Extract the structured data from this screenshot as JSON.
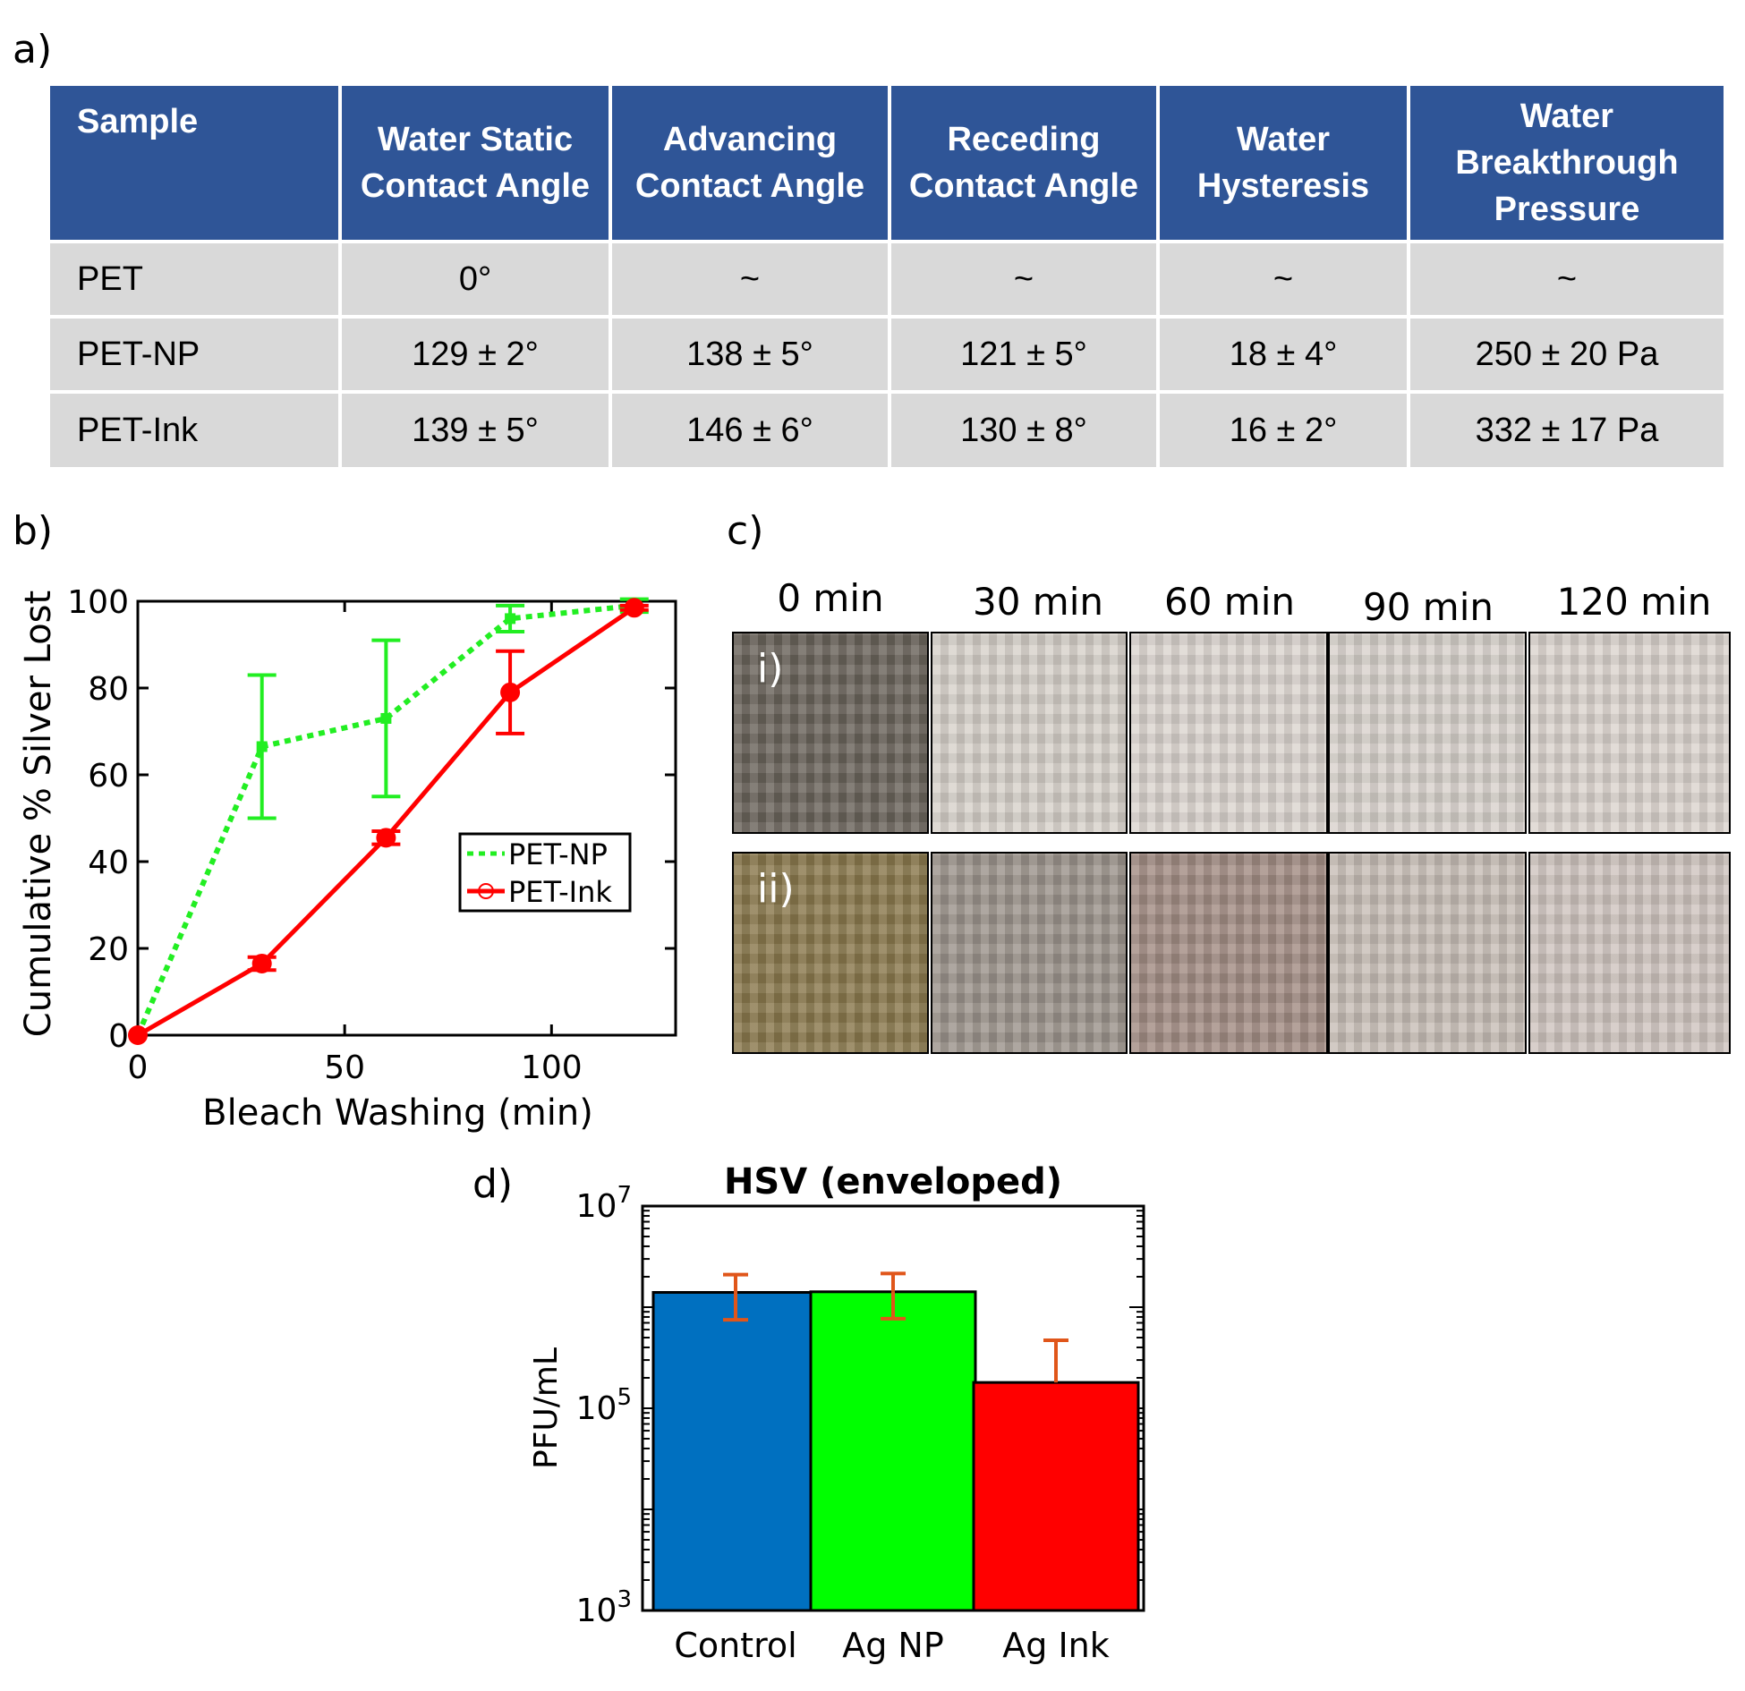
{
  "panel_labels": {
    "a": "a)",
    "b": "b)",
    "c": "c)",
    "d": "d)"
  },
  "table": {
    "headers": [
      "Sample",
      "Water Static Contact Angle",
      "Advancing Contact Angle",
      "Receding Contact Angle",
      "Water Hysteresis",
      "Water Breakthrough Pressure"
    ],
    "rows": [
      [
        "PET",
        "0°",
        "~",
        "~",
        "~",
        "~"
      ],
      [
        "PET-NP",
        "129 ± 2°",
        "138 ± 5°",
        "121 ± 5°",
        "18 ± 4°",
        "250 ± 20 Pa"
      ],
      [
        "PET-Ink",
        "139 ± 5°",
        "146 ± 6°",
        "130 ± 8°",
        "16 ± 2°",
        "332 ± 17 Pa"
      ]
    ]
  },
  "chart_data": [
    {
      "type": "line",
      "panel": "b",
      "xlabel": "Bleach Washing (min)",
      "ylabel": "Cumulative % Silver Lost",
      "xlim": [
        0,
        130
      ],
      "ylim": [
        0,
        100
      ],
      "xticks": [
        0,
        50,
        100
      ],
      "yticks": [
        0,
        20,
        40,
        60,
        80,
        100
      ],
      "legend_position": "center-right",
      "series": [
        {
          "name": "PET-NP",
          "color": "#22ee22",
          "style": "dotted",
          "marker": "square",
          "x": [
            0,
            30,
            60,
            90,
            120
          ],
          "y": [
            0,
            66.5,
            73,
            96,
            99
          ],
          "err": [
            0,
            16.5,
            18,
            3,
            1.5
          ]
        },
        {
          "name": "PET-Ink",
          "color": "#ff0000",
          "style": "solid",
          "marker": "circle",
          "x": [
            0,
            30,
            60,
            90,
            120
          ],
          "y": [
            0,
            16.5,
            45.5,
            79,
            98.5
          ],
          "err": [
            0,
            1.5,
            1.5,
            9.5,
            0.5
          ]
        }
      ]
    },
    {
      "type": "bar",
      "panel": "d",
      "title": "HSV (enveloped)",
      "ylabel": "PFU/mL",
      "yscale": "log",
      "ylim": [
        1000,
        10000000
      ],
      "yticks": [
        "10^3",
        "10^5",
        "10^7"
      ],
      "categories": [
        "Control",
        "Ag NP",
        "Ag Ink"
      ],
      "values": [
        1400000,
        1420000,
        180000
      ],
      "err_low": [
        750000,
        770000,
        180000
      ],
      "err_high": [
        2100000,
        2150000,
        470000
      ],
      "colors": [
        "#0070c0",
        "#00ff00",
        "#ff0000"
      ],
      "error_color": "#e0561a"
    }
  ],
  "images": {
    "time_labels": [
      "0 min",
      "30 min",
      "60 min",
      "90 min",
      "120 min"
    ],
    "row_labels": [
      "i)",
      "ii)"
    ],
    "row1_colors": [
      "#6b655c",
      "#d8d2cb",
      "#dcd6d0",
      "#d9d3cd",
      "#dcd5cf"
    ],
    "row2_colors": [
      "#8b7a4e",
      "#9d958d",
      "#a48e86",
      "#c9bfb8",
      "#d0c6c0"
    ]
  }
}
